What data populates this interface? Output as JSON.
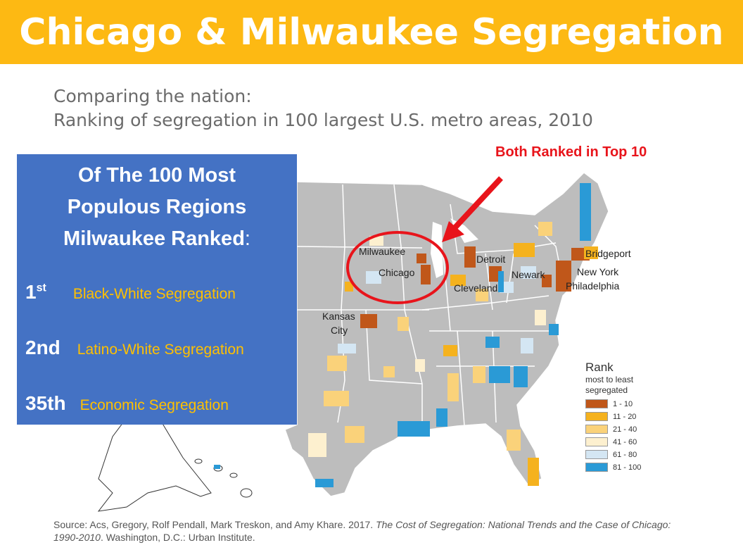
{
  "title": "Chicago & Milwaukee Segregation",
  "subtitle": {
    "line1": "Comparing the nation:",
    "line2": "Ranking of segregation in 100 largest U.S. metro areas, 2010"
  },
  "callout": "Both Ranked in Top 10",
  "info_box": {
    "heading_line1": "Of The 100 Most",
    "heading_line2": "Populous Regions",
    "heading_line3": "Milwaukee Ranked",
    "heading_colon": ":",
    "rankings": [
      {
        "rank": "1",
        "suffix": "st",
        "label": "Black-White Segregation"
      },
      {
        "rank": "2nd",
        "suffix": "",
        "label": "Latino-White Segregation"
      },
      {
        "rank": "35th",
        "suffix": "",
        "label": "Economic Segregation"
      }
    ]
  },
  "map": {
    "cities": [
      "Milwaukee",
      "Chicago",
      "Detroit",
      "Cleveland",
      "Newark",
      "Bridgeport",
      "New York",
      "Philadelphia",
      "Kansas",
      "City"
    ]
  },
  "legend": {
    "title": "Rank",
    "subtitle_line1": "most to least",
    "subtitle_line2": "segregated",
    "items": [
      {
        "label": "1 - 10",
        "color": "#C0571A"
      },
      {
        "label": "11 - 20",
        "color": "#F5B21E"
      },
      {
        "label": "21 - 40",
        "color": "#FAD27A"
      },
      {
        "label": "41 - 60",
        "color": "#FDF0CF"
      },
      {
        "label": "61 - 80",
        "color": "#D4E6F3"
      },
      {
        "label": "81 - 100",
        "color": "#2A9AD6"
      }
    ]
  },
  "source": {
    "prefix": "Source: Acs, Gregory, Rolf Pendall, Mark Treskon, and Amy Khare. 2017. ",
    "italic_title": "The Cost of Segregation: National Trends and the Case of Chicago: 1990-2010",
    "suffix": ". Washington, D.C.: Urban Institute."
  },
  "colors": {
    "title_bar": "#FDB913",
    "info_box": "#4472C4",
    "callout_red": "#E8141B",
    "land": "#BDBDBD"
  }
}
